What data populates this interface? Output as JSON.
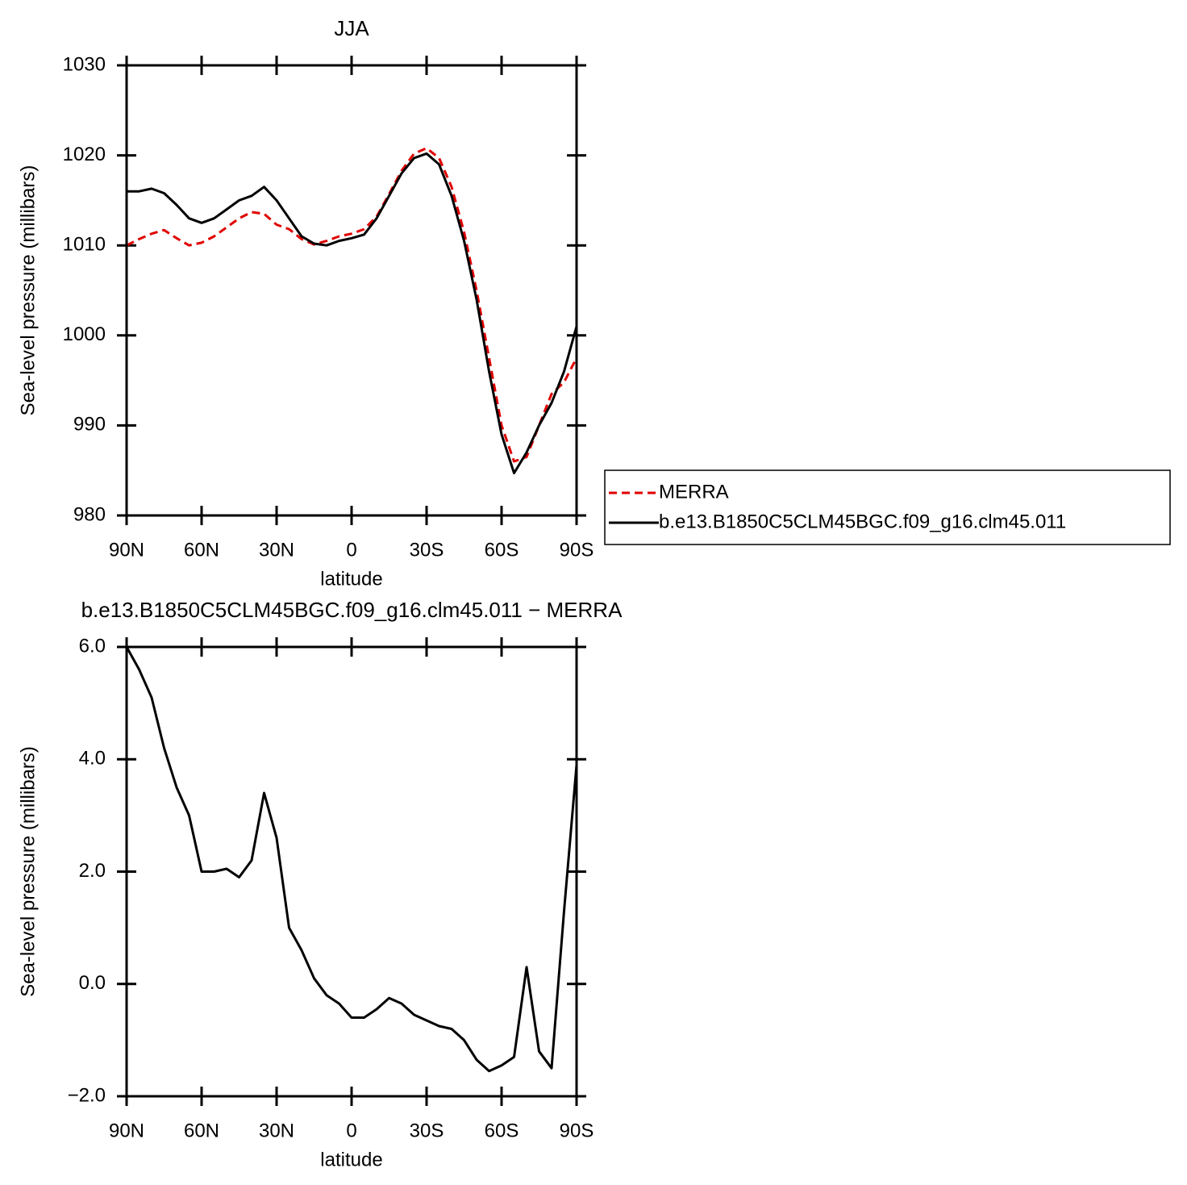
{
  "chart_data": [
    {
      "type": "line",
      "title": "JJA",
      "xlabel": "latitude",
      "ylabel": "Sea-level pressure (millibars)",
      "x": [
        90,
        85,
        80,
        75,
        70,
        65,
        60,
        55,
        50,
        45,
        40,
        35,
        30,
        25,
        20,
        15,
        10,
        5,
        0,
        -5,
        -10,
        -15,
        -20,
        -25,
        -30,
        -35,
        -40,
        -45,
        -50,
        -55,
        -60,
        -65,
        -70,
        -75,
        -80,
        -85,
        -90
      ],
      "series": [
        {
          "name": "MERRA",
          "color": "#e00000",
          "dash": true,
          "values": [
            1010,
            1010.7,
            1011.3,
            1011.7,
            1010.8,
            1010,
            1010.3,
            1011,
            1012,
            1013,
            1013.7,
            1013.5,
            1012.3,
            1011.8,
            1010.7,
            1010.1,
            1010.5,
            1011,
            1011.3,
            1011.8,
            1013.2,
            1015.7,
            1018.3,
            1020.2,
            1020.8,
            1019.7,
            1016.5,
            1011.5,
            1005,
            997.5,
            990,
            986,
            986.5,
            990,
            993.5,
            994.8,
            997.5
          ]
        },
        {
          "name": "b.e13.B1850C5CLM45BGC.f09_g16.clm45.011",
          "color": "#000000",
          "dash": false,
          "values": [
            1016,
            1016,
            1016.3,
            1015.8,
            1014.5,
            1013,
            1012.5,
            1013,
            1014,
            1015,
            1015.5,
            1016.5,
            1015,
            1013,
            1011,
            1010.2,
            1010,
            1010.5,
            1010.8,
            1011.2,
            1013,
            1015.5,
            1018,
            1019.7,
            1020.2,
            1019,
            1015.5,
            1010.5,
            1004,
            996,
            989,
            984.7,
            987,
            990,
            992.5,
            996,
            1001
          ]
        }
      ],
      "xlim": [
        90,
        -90
      ],
      "xticks": [
        {
          "value": 90,
          "label": "90N"
        },
        {
          "value": 60,
          "label": "60N"
        },
        {
          "value": 30,
          "label": "30N"
        },
        0,
        {
          "value": -30,
          "label": "30S"
        },
        {
          "value": -60,
          "label": "60S"
        },
        {
          "value": -90,
          "label": "90S"
        }
      ],
      "ylim": [
        980,
        1030
      ],
      "yticks": [
        980,
        990,
        1000,
        1010,
        1020,
        1030
      ],
      "legend": "right"
    },
    {
      "type": "line",
      "title": "b.e13.B1850C5CLM45BGC.f09_g16.clm45.011 − MERRA",
      "xlabel": "latitude",
      "ylabel": "Sea-level pressure (millibars)",
      "x": [
        90,
        85,
        80,
        75,
        70,
        65,
        60,
        55,
        50,
        45,
        40,
        35,
        30,
        25,
        20,
        15,
        10,
        5,
        0,
        -5,
        -10,
        -15,
        -20,
        -25,
        -30,
        -35,
        -40,
        -45,
        -50,
        -55,
        -60,
        -65,
        -70,
        -75,
        -80,
        -85,
        -90
      ],
      "series": [
        {
          "color": "#000000",
          "dash": false,
          "values": [
            6.0,
            5.6,
            5.1,
            4.2,
            3.5,
            3.0,
            2.0,
            2.0,
            2.05,
            1.9,
            2.2,
            3.4,
            2.6,
            1.0,
            0.6,
            0.1,
            -0.2,
            -0.35,
            -0.6,
            -0.6,
            -0.45,
            -0.25,
            -0.35,
            -0.55,
            -0.65,
            -0.75,
            -0.8,
            -1.0,
            -1.35,
            -1.55,
            -1.45,
            -1.3,
            0.3,
            -1.2,
            -1.5,
            1.3,
            3.9
          ]
        }
      ],
      "xlim": [
        90,
        -90
      ],
      "xticks": [
        {
          "value": 90,
          "label": "90N"
        },
        {
          "value": 60,
          "label": "60N"
        },
        {
          "value": 30,
          "label": "30N"
        },
        0,
        {
          "value": -30,
          "label": "30S"
        },
        {
          "value": -60,
          "label": "60S"
        },
        {
          "value": -90,
          "label": "90S"
        }
      ],
      "ylim": [
        -2,
        6
      ],
      "yticks": [
        {
          "value": -2,
          "label": "−2.0"
        },
        {
          "value": 0,
          "label": "0.0"
        },
        {
          "value": 2,
          "label": "2.0"
        },
        {
          "value": 4,
          "label": "4.0"
        },
        {
          "value": 6,
          "label": "6.0"
        }
      ]
    }
  ]
}
